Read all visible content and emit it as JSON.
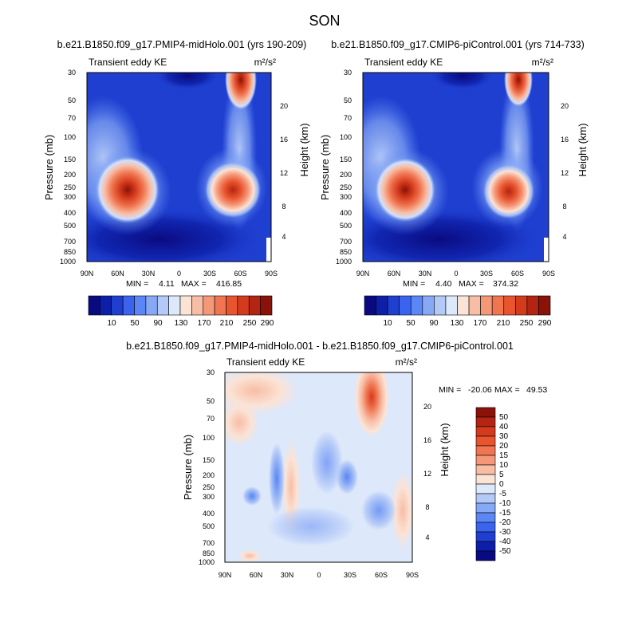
{
  "figure_title": "SON",
  "chart_data": [
    {
      "type": "heatmap",
      "title": "b.e21.B1850.f09_g17.PMIP4-midHolo.001 (yrs 190-209)",
      "subtitle_left": "Transient eddy KE",
      "units": "m²/s²",
      "ylabel": "Pressure (mb)",
      "ylabel_right": "Height (km)",
      "xticks": [
        "90N",
        "60N",
        "30N",
        "0",
        "30S",
        "60S",
        "90S"
      ],
      "yticks": [
        "30",
        "50",
        "70",
        "100",
        "150",
        "200",
        "250",
        "300",
        "400",
        "500",
        "700",
        "850",
        "1000"
      ],
      "yticks_right": [
        "20",
        "16",
        "12",
        "8",
        "4"
      ],
      "stats": {
        "min_label": "MIN =",
        "min": "4.11",
        "max_label": "MAX =",
        "max": "416.85"
      },
      "colorbar_labels": [
        "10",
        "50",
        "90",
        "130",
        "170",
        "210",
        "250",
        "290"
      ],
      "colors": [
        "#0a0a80",
        "#0d1fa8",
        "#1f3fd0",
        "#3a63ef",
        "#5b86f5",
        "#86a8f5",
        "#b3c9f7",
        "#dde8fb",
        "#fbe3d5",
        "#f8bda5",
        "#f59878",
        "#f07550",
        "#e8542e",
        "#d43a1c",
        "#b42412",
        "#8a1208"
      ],
      "features": [
        {
          "lat": -50,
          "p": 30,
          "value": 416
        },
        {
          "lat": 50,
          "p": 270,
          "value": 300
        },
        {
          "lat": -45,
          "p": 280,
          "value": 270
        }
      ]
    },
    {
      "type": "heatmap",
      "title": "b.e21.B1850.f09_g17.CMIP6-piControl.001 (yrs 714-733)",
      "subtitle_left": "Transient eddy KE",
      "units": "m²/s²",
      "ylabel": "Pressure (mb)",
      "ylabel_right": "Height (km)",
      "xticks": [
        "90N",
        "60N",
        "30N",
        "0",
        "30S",
        "60S",
        "90S"
      ],
      "yticks": [
        "30",
        "50",
        "70",
        "100",
        "150",
        "200",
        "250",
        "300",
        "400",
        "500",
        "700",
        "850",
        "1000"
      ],
      "yticks_right": [
        "20",
        "16",
        "12",
        "8",
        "4"
      ],
      "stats": {
        "min_label": "MIN =",
        "min": "4.40",
        "max_label": "MAX =",
        "max": "374.32"
      },
      "colorbar_labels": [
        "10",
        "50",
        "90",
        "130",
        "170",
        "210",
        "250",
        "290"
      ],
      "colors": [
        "#0a0a80",
        "#0d1fa8",
        "#1f3fd0",
        "#3a63ef",
        "#5b86f5",
        "#86a8f5",
        "#b3c9f7",
        "#dde8fb",
        "#fbe3d5",
        "#f8bda5",
        "#f59878",
        "#f07550",
        "#e8542e",
        "#d43a1c",
        "#b42412",
        "#8a1208"
      ],
      "features": [
        {
          "lat": -50,
          "p": 30,
          "value": 374
        },
        {
          "lat": 50,
          "p": 270,
          "value": 290
        },
        {
          "lat": -45,
          "p": 280,
          "value": 260
        }
      ]
    },
    {
      "type": "heatmap",
      "title": "b.e21.B1850.f09_g17.PMIP4-midHolo.001 - b.e21.B1850.f09_g17.CMIP6-piControl.001",
      "subtitle_left": "Transient eddy KE",
      "units": "m²/s²",
      "ylabel": "Pressure (mb)",
      "ylabel_right": "Height (km)",
      "xticks": [
        "90N",
        "60N",
        "30N",
        "0",
        "30S",
        "60S",
        "90S"
      ],
      "yticks": [
        "30",
        "50",
        "70",
        "100",
        "150",
        "200",
        "250",
        "300",
        "400",
        "500",
        "700",
        "850",
        "1000"
      ],
      "yticks_right": [
        "20",
        "16",
        "12",
        "8",
        "4"
      ],
      "stats": {
        "min_label": "MIN =",
        "min": "-20.06",
        "max_label": "MAX =",
        "max": "49.53"
      },
      "colorbar_labels": [
        "50",
        "40",
        "30",
        "20",
        "15",
        "10",
        "5",
        "0",
        "-5",
        "-10",
        "-15",
        "-20",
        "-30",
        "-40",
        "-50"
      ],
      "colors": [
        "#8a1208",
        "#b42412",
        "#d43a1c",
        "#e8542e",
        "#f07550",
        "#f59878",
        "#f8bda5",
        "#fbe3d5",
        "#dde8fb",
        "#b3c9f7",
        "#86a8f5",
        "#5b86f5",
        "#3a63ef",
        "#1f3fd0",
        "#0d1fa8",
        "#0a0a80"
      ],
      "features": [
        {
          "lat": -52,
          "p": 30,
          "value": 49
        },
        {
          "lat": 35,
          "p": 250,
          "value": -10
        },
        {
          "lat": 65,
          "p": 40,
          "value": 8
        }
      ]
    }
  ]
}
